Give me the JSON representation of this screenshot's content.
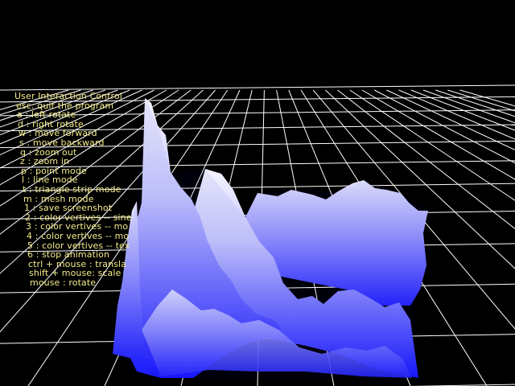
{
  "colors": {
    "background": "#000000",
    "grid": "#ffffff",
    "mesh_light": "#f2f2ff",
    "mesh_mid": "#8a8aff",
    "mesh_dark": "#1c1cff",
    "help_text": "#f3ec8a"
  },
  "help": {
    "title": "User Interaction Control",
    "lines": [
      "esc: quit the program",
      "a   : left rotate",
      "d   : right rotate",
      "w  : move forward",
      "s   : move backward",
      "q   : zoom out",
      "z   : zoom in",
      "p   : point mode",
      "l    : line mode",
      "t   : triangle strip mode",
      "m  : mesh mode",
      "1   : save screenshot",
      "2   : color vertives -- sine",
      "3   : color vertives -- mo",
      "4   : color vertives -- mo",
      "5   : color vertives -- tex",
      "6   : stop animation",
      "ctrl + mouse : transla",
      "shift + mouse: scale",
      "mouse          : rotate"
    ]
  }
}
